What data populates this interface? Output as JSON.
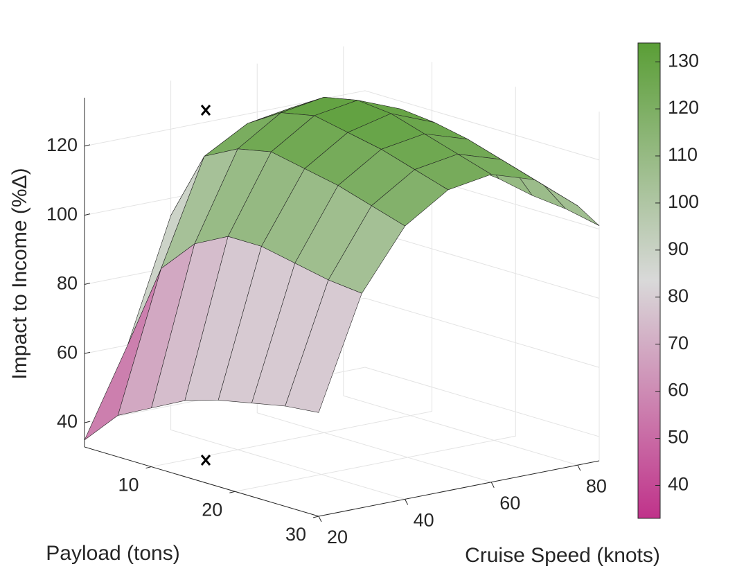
{
  "chart_data": {
    "type": "surface",
    "zlabel": "Impact to Income (%Δ)",
    "xlabel": "Cruise Speed (knots)",
    "ylabel": "Payload (tons)",
    "x": [
      20,
      30,
      40,
      50,
      60,
      70,
      80,
      85
    ],
    "y": [
      2,
      6,
      10,
      14,
      18,
      22,
      26,
      30
    ],
    "z": [
      [
        35,
        60,
        95,
        110,
        115,
        112,
        105,
        100
      ],
      [
        45,
        85,
        115,
        122,
        124,
        120,
        112,
        105
      ],
      [
        50,
        95,
        120,
        128,
        130,
        125,
        115,
        106
      ],
      [
        55,
        100,
        122,
        130,
        132,
        127,
        117,
        107
      ],
      [
        58,
        100,
        120,
        128,
        131,
        126,
        116,
        106
      ],
      [
        60,
        98,
        118,
        126,
        128,
        124,
        114,
        104
      ],
      [
        62,
        96,
        115,
        123,
        125,
        121,
        111,
        103
      ],
      [
        63,
        95,
        112,
        120,
        122,
        118,
        108,
        101
      ]
    ],
    "xlim": [
      20,
      85
    ],
    "ylim": [
      2,
      30
    ],
    "zlim": [
      33,
      134
    ],
    "xticks": [
      20,
      40,
      60,
      80
    ],
    "yticks": [
      10,
      20,
      30
    ],
    "zticks": [
      40,
      60,
      80,
      100,
      120
    ],
    "clim": [
      33,
      134
    ],
    "cticks": [
      40,
      50,
      60,
      70,
      80,
      90,
      100,
      110,
      120,
      130
    ],
    "colormap": [
      "#c0328a",
      "#d9d9d9",
      "#5a9e36"
    ],
    "grid": true
  }
}
